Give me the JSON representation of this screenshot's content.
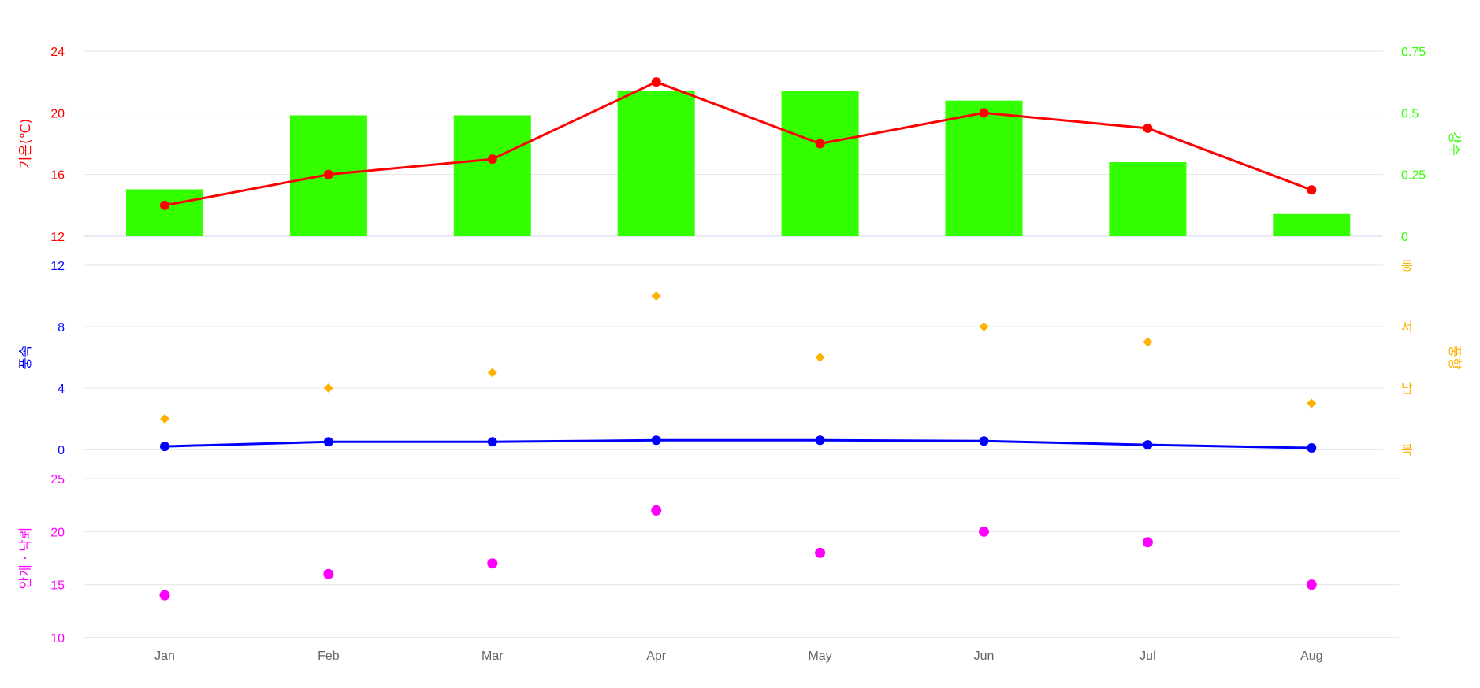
{
  "chart_data": {
    "type": "combo",
    "categories": [
      "Jan",
      "Feb",
      "Mar",
      "Apr",
      "May",
      "Jun",
      "Jul",
      "Aug"
    ],
    "panels": [
      {
        "id": "top",
        "left_axis": {
          "title": "기온(℃)",
          "ticks": [
            12,
            16,
            20,
            24
          ],
          "range": [
            12,
            24
          ],
          "color": "#ff0000"
        },
        "right_axis": {
          "title": "강수",
          "ticks": [
            0,
            0.25,
            0.5,
            0.75
          ],
          "tick_labels": [
            "0",
            "0.25",
            "0.5",
            "0.75"
          ],
          "range": [
            0,
            0.75
          ],
          "color": "#33ff00"
        },
        "series": [
          {
            "kind": "bar",
            "axis": "right",
            "color": "#33ff00",
            "values": [
              0.19,
              0.49,
              0.49,
              0.59,
              0.59,
              0.55,
              0.3,
              0.09
            ]
          },
          {
            "kind": "line",
            "axis": "left",
            "color": "#ff0000",
            "values": [
              14,
              16,
              17,
              22,
              18,
              20,
              19,
              15
            ]
          }
        ]
      },
      {
        "id": "middle",
        "left_axis": {
          "title": "풍속",
          "ticks": [
            0,
            4,
            8,
            12
          ],
          "range": [
            0,
            12
          ],
          "color": "#0000ff"
        },
        "right_axis": {
          "title": "풍향",
          "ticks": [
            0,
            4,
            8,
            12
          ],
          "tick_labels": [
            "북",
            "남",
            "서",
            "동"
          ],
          "range": [
            0,
            12
          ],
          "color": "#ffb000"
        },
        "series": [
          {
            "kind": "line",
            "axis": "left",
            "color": "#0000ff",
            "values": [
              0.2,
              0.5,
              0.5,
              0.6,
              0.6,
              0.55,
              0.3,
              0.1
            ]
          },
          {
            "kind": "diamond",
            "axis": "right",
            "color": "#ffb000",
            "values": [
              2,
              4,
              5,
              10,
              6,
              8,
              7,
              3
            ]
          }
        ]
      },
      {
        "id": "bottom",
        "left_axis": {
          "title": "안개 · 낙뢰",
          "ticks": [
            10,
            15,
            20,
            25
          ],
          "range": [
            10,
            25
          ],
          "color": "#ff00ff"
        },
        "series": [
          {
            "kind": "scatter",
            "axis": "left",
            "color": "#ff00ff",
            "values": [
              14,
              16,
              17,
              22,
              18,
              20,
              19,
              15
            ]
          }
        ]
      }
    ]
  }
}
